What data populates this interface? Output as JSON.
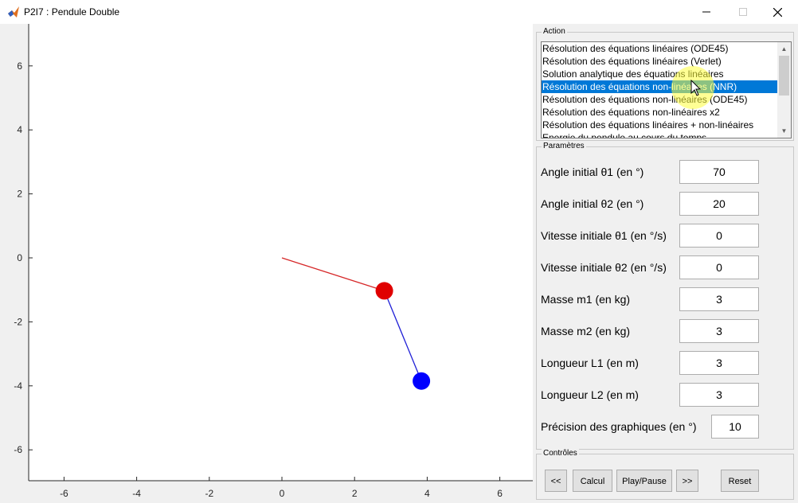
{
  "window": {
    "title": "P2I7 : Pendule Double",
    "icon": "matlab-icon"
  },
  "chart_data": {
    "type": "scatter",
    "title": "",
    "xlabel": "",
    "ylabel": "",
    "xlim": [
      -7,
      7
    ],
    "ylim": [
      -7,
      7
    ],
    "x_ticks": [
      -6,
      -4,
      -2,
      0,
      2,
      4,
      6
    ],
    "y_ticks": [
      6,
      4,
      2,
      0,
      -2,
      -4,
      -6
    ],
    "grid": false,
    "pendulum": {
      "pivot": [
        0,
        0
      ],
      "mass1": [
        2.82,
        -1.03
      ],
      "mass2": [
        3.84,
        -3.85
      ],
      "rod1_color": "#d62728",
      "rod2_color": "#1f1fd6",
      "mass1_color": "#e00000",
      "mass2_color": "#0000ff"
    }
  },
  "action": {
    "title": "Action",
    "items": [
      "Résolution des équations linéaires (ODE45)",
      "Résolution des équations linéaires (Verlet)",
      "Solution analytique des équations linéaires",
      "Résolution des équations non-linéaires (NNR)",
      "Résolution des équations non-linéaires (ODE45)",
      "Résolution des équations non-linéaires x2",
      "Résolution des équations linéaires + non-linéaires",
      "Energie du pendule au cours du temps"
    ],
    "selected_index": 3
  },
  "params": {
    "title": "Paramètres",
    "rows": [
      {
        "label": "Angle initial θ1 (en °)",
        "value": "70"
      },
      {
        "label": "Angle initial θ2 (en °)",
        "value": "20"
      },
      {
        "label": "Vitesse initiale θ1 (en °/s)",
        "value": "0"
      },
      {
        "label": "Vitesse initiale θ2 (en °/s)",
        "value": "0"
      },
      {
        "label": "Masse m1 (en kg)",
        "value": "3"
      },
      {
        "label": "Masse m2 (en kg)",
        "value": "3"
      },
      {
        "label": "Longueur L1 (en m)",
        "value": "3"
      },
      {
        "label": "Longueur L2 (en m)",
        "value": "3"
      },
      {
        "label": "Précision des graphiques (en °)",
        "value": "10"
      }
    ]
  },
  "controls": {
    "title": "Contrôles",
    "prev": "<<",
    "calc": "Calcul",
    "playpause": "Play/Pause",
    "next": ">>",
    "reset": "Reset"
  }
}
